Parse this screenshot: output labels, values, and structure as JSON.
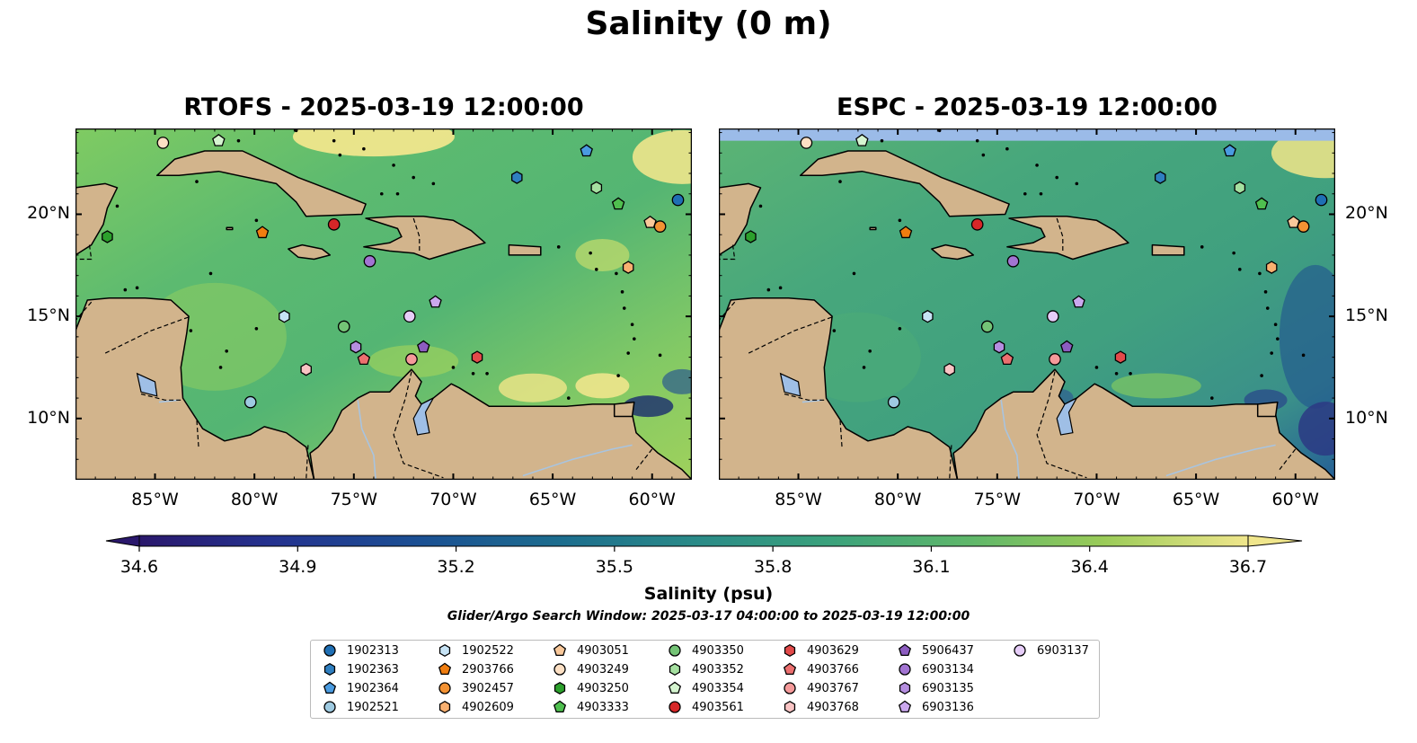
{
  "title": "Salinity (0 m)",
  "panels": [
    {
      "title": "RTOFS - 2025-03-19 12:00:00",
      "model": "rtofs"
    },
    {
      "title": "ESPC - 2025-03-19 12:00:00",
      "model": "espc"
    }
  ],
  "map": {
    "lon_range": [
      -89,
      -58
    ],
    "lat_range": [
      7,
      24.2
    ],
    "lon_ticks": [
      {
        "value": -85,
        "label": "85°W"
      },
      {
        "value": -80,
        "label": "80°W"
      },
      {
        "value": -75,
        "label": "75°W"
      },
      {
        "value": -70,
        "label": "70°W"
      },
      {
        "value": -65,
        "label": "65°W"
      },
      {
        "value": -60,
        "label": "60°W"
      }
    ],
    "lat_ticks": [
      {
        "value": 10,
        "label": "10°N"
      },
      {
        "value": 15,
        "label": "15°N"
      },
      {
        "value": 20,
        "label": "20°N"
      }
    ],
    "land_color": "#d2b48c",
    "lake_color": "#9fbfe6",
    "espc_nodata_band_color": "#9bbbe8"
  },
  "colorbar": {
    "label": "Salinity (psu)",
    "min": 34.6,
    "max": 36.7,
    "ticks": [
      "34.6",
      "34.9",
      "35.2",
      "35.5",
      "35.8",
      "36.1",
      "36.4",
      "36.7"
    ],
    "colormap": "haline",
    "extend": "both"
  },
  "search_window": "Glider/Argo Search Window: 2025-03-17 04:00:00 to 2025-03-19 12:00:00",
  "legend": [
    {
      "id": "1902313",
      "marker": "circle",
      "color": "#1f6fb4"
    },
    {
      "id": "1902363",
      "marker": "hexagon",
      "color": "#2f7fc0"
    },
    {
      "id": "1902364",
      "marker": "pentagon",
      "color": "#4a9be0"
    },
    {
      "id": "1902521",
      "marker": "circle",
      "color": "#9ecae1"
    },
    {
      "id": "1902522",
      "marker": "hexagon",
      "color": "#c6e3f5"
    },
    {
      "id": "2903766",
      "marker": "pentagon",
      "color": "#f07d10"
    },
    {
      "id": "3902457",
      "marker": "circle",
      "color": "#f39233"
    },
    {
      "id": "4902609",
      "marker": "hexagon",
      "color": "#f8b070"
    },
    {
      "id": "4903051",
      "marker": "pentagon",
      "color": "#f9c89a"
    },
    {
      "id": "4903249",
      "marker": "circle",
      "color": "#fde0c4"
    },
    {
      "id": "4903250",
      "marker": "hexagon",
      "color": "#2ca02c"
    },
    {
      "id": "4903333",
      "marker": "pentagon",
      "color": "#4fbf4f"
    },
    {
      "id": "4903350",
      "marker": "circle",
      "color": "#74c476"
    },
    {
      "id": "4903352",
      "marker": "hexagon",
      "color": "#a5e0a0"
    },
    {
      "id": "4903354",
      "marker": "pentagon",
      "color": "#d5f5d0"
    },
    {
      "id": "4903561",
      "marker": "circle",
      "color": "#d62728"
    },
    {
      "id": "4903629",
      "marker": "hexagon",
      "color": "#e24a4a"
    },
    {
      "id": "4903766",
      "marker": "pentagon",
      "color": "#ec6f6f"
    },
    {
      "id": "4903767",
      "marker": "circle",
      "color": "#f59a9a"
    },
    {
      "id": "4903768",
      "marker": "hexagon",
      "color": "#f9c4c4"
    },
    {
      "id": "5906437",
      "marker": "pentagon",
      "color": "#8c5cc0"
    },
    {
      "id": "6903134",
      "marker": "circle",
      "color": "#a274d2"
    },
    {
      "id": "6903135",
      "marker": "hexagon",
      "color": "#b58ee0"
    },
    {
      "id": "6903136",
      "marker": "pentagon",
      "color": "#cba8ee"
    },
    {
      "id": "6903137",
      "marker": "circle",
      "color": "#e6cdf8"
    }
  ],
  "floats": [
    {
      "id": "1902313",
      "lon": -58.7,
      "lat": 20.7
    },
    {
      "id": "1902363",
      "lon": -66.8,
      "lat": 21.8
    },
    {
      "id": "1902364",
      "lon": -63.3,
      "lat": 23.1
    },
    {
      "id": "1902521",
      "lon": -80.2,
      "lat": 10.8
    },
    {
      "id": "1902522",
      "lon": -78.5,
      "lat": 15.0
    },
    {
      "id": "2903766",
      "lon": -79.6,
      "lat": 19.1
    },
    {
      "id": "3902457",
      "lon": -59.6,
      "lat": 19.4
    },
    {
      "id": "4902609",
      "lon": -61.2,
      "lat": 17.4
    },
    {
      "id": "4903051",
      "lon": -60.1,
      "lat": 19.6
    },
    {
      "id": "4903249",
      "lon": -84.6,
      "lat": 23.5
    },
    {
      "id": "4903250",
      "lon": -87.4,
      "lat": 18.9
    },
    {
      "id": "4903333",
      "lon": -61.7,
      "lat": 20.5
    },
    {
      "id": "4903350",
      "lon": -75.5,
      "lat": 14.5
    },
    {
      "id": "4903352",
      "lon": -62.8,
      "lat": 21.3
    },
    {
      "id": "4903354",
      "lon": -81.8,
      "lat": 23.6
    },
    {
      "id": "4903561",
      "lon": -76.0,
      "lat": 19.5
    },
    {
      "id": "4903629",
      "lon": -68.8,
      "lat": 13.0
    },
    {
      "id": "4903766",
      "lon": -74.5,
      "lat": 12.9
    },
    {
      "id": "4903767",
      "lon": -72.1,
      "lat": 12.9
    },
    {
      "id": "4903768",
      "lon": -77.4,
      "lat": 12.4
    },
    {
      "id": "5906437",
      "lon": -71.5,
      "lat": 13.5
    },
    {
      "id": "6903134",
      "lon": -74.2,
      "lat": 17.7
    },
    {
      "id": "6903135",
      "lon": -74.9,
      "lat": 13.5
    },
    {
      "id": "6903136",
      "lon": -70.9,
      "lat": 15.7
    },
    {
      "id": "6903137",
      "lon": -72.2,
      "lat": 15.0
    }
  ]
}
